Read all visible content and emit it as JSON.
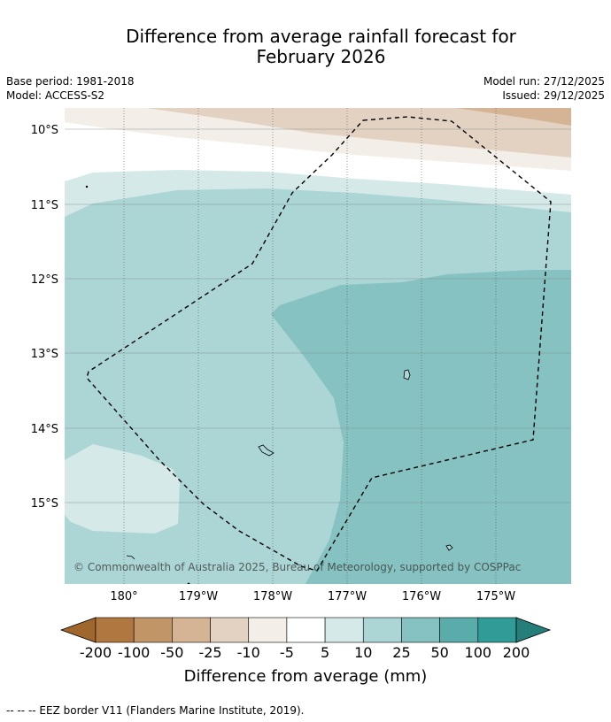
{
  "title_line1": "Difference from average rainfall forecast for",
  "title_line2": "February 2026",
  "meta": {
    "base_period": "Base period: 1981-2018",
    "model": "Model: ACCESS-S2",
    "model_run": "Model run: 27/12/2025",
    "issued": "Issued: 29/12/2025"
  },
  "map": {
    "lat_labels": [
      "10°S",
      "11°S",
      "12°S",
      "13°S",
      "14°S",
      "15°S"
    ],
    "lon_labels": [
      "180°",
      "179°W",
      "178°W",
      "177°W",
      "176°W",
      "175°W"
    ],
    "copyright": "© Commonwealth of Australia 2025, Bureau of Meteorology, supported by COSPPac"
  },
  "colorbar": {
    "ticks": [
      "-200",
      "-100",
      "-50",
      "-25",
      "-10",
      "-5",
      "5",
      "10",
      "25",
      "50",
      "100",
      "200"
    ],
    "colors": [
      "#a0672c",
      "#b07840",
      "#c29566",
      "#d5b495",
      "#e3d2c2",
      "#f3eee8",
      "#ffffff",
      "#d5e9e9",
      "#acd5d5",
      "#85c2c1",
      "#5aacaa",
      "#319b97",
      "#267e7b"
    ],
    "title": "Difference from average (mm)"
  },
  "footer": "--  --  -- EEZ border V11 (Flanders Marine Institute, 2019)."
}
